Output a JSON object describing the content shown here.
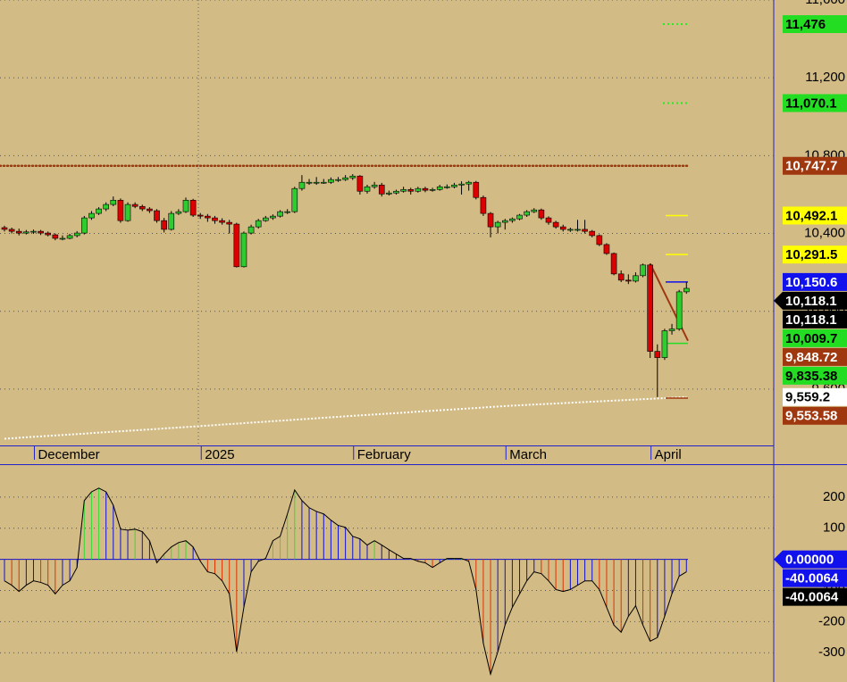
{
  "chart_data": {
    "type": "candlestick",
    "categories": [
      null,
      null,
      null,
      null,
      "December",
      null,
      null,
      null,
      null,
      null,
      null,
      null,
      null,
      null,
      null,
      null,
      null,
      null,
      null,
      null,
      null,
      null,
      null,
      null,
      null,
      null,
      null,
      "2025",
      null,
      null,
      null,
      null,
      null,
      null,
      null,
      null,
      null,
      null,
      null,
      null,
      null,
      null,
      null,
      null,
      null,
      null,
      null,
      null,
      "February",
      null,
      null,
      null,
      null,
      null,
      null,
      null,
      null,
      null,
      null,
      null,
      null,
      null,
      null,
      null,
      null,
      null,
      null,
      null,
      null,
      "March",
      null,
      null,
      null,
      null,
      null,
      null,
      null,
      null,
      null,
      null,
      null,
      null,
      null,
      null,
      null,
      null,
      null,
      null,
      null,
      "April",
      null,
      null,
      null,
      null,
      null
    ],
    "ohlc": [
      [
        10430,
        10440,
        10410,
        10421
      ],
      [
        10421,
        10430,
        10400,
        10411
      ],
      [
        10411,
        10425,
        10390,
        10402
      ],
      [
        10402,
        10418,
        10395,
        10408
      ],
      [
        10408,
        10420,
        10398,
        10411
      ],
      [
        10411,
        10418,
        10392,
        10402
      ],
      [
        10402,
        10410,
        10385,
        10393
      ],
      [
        10393,
        10400,
        10365,
        10375
      ],
      [
        10375,
        10390,
        10365,
        10375
      ],
      [
        10375,
        10398,
        10370,
        10389
      ],
      [
        10389,
        10412,
        10380,
        10402
      ],
      [
        10402,
        10490,
        10395,
        10480
      ],
      [
        10480,
        10515,
        10470,
        10503
      ],
      [
        10503,
        10535,
        10495,
        10526
      ],
      [
        10526,
        10560,
        10515,
        10549
      ],
      [
        10549,
        10590,
        10540,
        10571
      ],
      [
        10571,
        10580,
        10455,
        10466
      ],
      [
        10466,
        10560,
        10460,
        10549
      ],
      [
        10549,
        10560,
        10530,
        10539
      ],
      [
        10539,
        10548,
        10515,
        10526
      ],
      [
        10526,
        10535,
        10505,
        10517
      ],
      [
        10517,
        10525,
        10455,
        10466
      ],
      [
        10466,
        10480,
        10405,
        10421
      ],
      [
        10421,
        10515,
        10415,
        10503
      ],
      [
        10503,
        10525,
        10495,
        10512
      ],
      [
        10512,
        10585,
        10505,
        10571
      ],
      [
        10571,
        10578,
        10485,
        10494
      ],
      [
        10494,
        10505,
        10475,
        10489
      ],
      [
        10489,
        10500,
        10460,
        10480
      ],
      [
        10480,
        10490,
        10450,
        10466
      ],
      [
        10466,
        10478,
        10445,
        10457
      ],
      [
        10457,
        10470,
        10400,
        10448
      ],
      [
        10448,
        10455,
        10225,
        10229
      ],
      [
        10229,
        10410,
        10225,
        10402
      ],
      [
        10402,
        10445,
        10395,
        10434
      ],
      [
        10434,
        10475,
        10425,
        10466
      ],
      [
        10466,
        10490,
        10460,
        10480
      ],
      [
        10480,
        10498,
        10470,
        10489
      ],
      [
        10489,
        10520,
        10482,
        10512
      ],
      [
        10512,
        10525,
        10500,
        10512
      ],
      [
        10512,
        10640,
        10505,
        10631
      ],
      [
        10631,
        10700,
        10620,
        10663
      ],
      [
        10663,
        10680,
        10650,
        10663
      ],
      [
        10663,
        10690,
        10650,
        10663
      ],
      [
        10663,
        10680,
        10655,
        10663
      ],
      [
        10663,
        10688,
        10655,
        10677
      ],
      [
        10677,
        10690,
        10665,
        10677
      ],
      [
        10677,
        10700,
        10670,
        10686
      ],
      [
        10686,
        10705,
        10675,
        10695
      ],
      [
        10695,
        10700,
        10600,
        10617
      ],
      [
        10617,
        10650,
        10605,
        10640
      ],
      [
        10640,
        10665,
        10630,
        10649
      ],
      [
        10649,
        10660,
        10590,
        10603
      ],
      [
        10603,
        10620,
        10595,
        10608
      ],
      [
        10608,
        10625,
        10600,
        10617
      ],
      [
        10617,
        10640,
        10610,
        10626
      ],
      [
        10626,
        10635,
        10600,
        10617
      ],
      [
        10617,
        10640,
        10610,
        10631
      ],
      [
        10631,
        10640,
        10612,
        10622
      ],
      [
        10622,
        10635,
        10615,
        10626
      ],
      [
        10626,
        10650,
        10620,
        10640
      ],
      [
        10640,
        10652,
        10630,
        10640
      ],
      [
        10640,
        10660,
        10632,
        10649
      ],
      [
        10649,
        10668,
        10600,
        10654
      ],
      [
        10654,
        10670,
        10620,
        10663
      ],
      [
        10663,
        10670,
        10575,
        10585
      ],
      [
        10585,
        10595,
        10490,
        10503
      ],
      [
        10503,
        10510,
        10380,
        10434
      ],
      [
        10434,
        10465,
        10400,
        10457
      ],
      [
        10457,
        10475,
        10420,
        10466
      ],
      [
        10466,
        10482,
        10455,
        10475
      ],
      [
        10475,
        10500,
        10468,
        10494
      ],
      [
        10494,
        10520,
        10485,
        10512
      ],
      [
        10512,
        10530,
        10505,
        10521
      ],
      [
        10521,
        10528,
        10470,
        10480
      ],
      [
        10480,
        10488,
        10445,
        10457
      ],
      [
        10457,
        10465,
        10425,
        10434
      ],
      [
        10434,
        10445,
        10410,
        10421
      ],
      [
        10421,
        10430,
        10408,
        10421
      ],
      [
        10421,
        10470,
        10410,
        10421
      ],
      [
        10421,
        10470,
        10400,
        10411
      ],
      [
        10411,
        10418,
        10380,
        10389
      ],
      [
        10389,
        10395,
        10335,
        10343
      ],
      [
        10343,
        10350,
        10290,
        10297
      ],
      [
        10297,
        10302,
        10185,
        10192
      ],
      [
        10192,
        10210,
        10150,
        10160
      ],
      [
        10160,
        10190,
        10140,
        10155
      ],
      [
        10155,
        10200,
        10148,
        10183
      ],
      [
        10183,
        10245,
        10175,
        10238
      ],
      [
        10238,
        10245,
        9760,
        9794
      ],
      [
        9794,
        9830,
        9559,
        9762
      ],
      [
        9762,
        9910,
        9750,
        9900
      ],
      [
        9900,
        9935,
        9880,
        9909
      ],
      [
        9909,
        10110,
        9900,
        10100
      ],
      [
        10100,
        10150,
        10090,
        10118
      ]
    ],
    "up_color": "#2ecc2e",
    "down_color": "#dd0000",
    "ylim": [
      9315,
      11600
    ],
    "yticks": [
      {
        "value": 9600,
        "label": "9,600"
      },
      {
        "value": 10000,
        "label": "10,000"
      },
      {
        "value": 10400,
        "label": "10,400"
      },
      {
        "value": 10800,
        "label": "10,800"
      },
      {
        "value": 11200,
        "label": "11,200"
      },
      {
        "value": 11600,
        "label": "11,600"
      }
    ],
    "grid": true,
    "moving_average": {
      "color": "#ffffff",
      "index": [
        0,
        23,
        47,
        70,
        94
      ],
      "values": [
        9345,
        9400,
        9460,
        9515,
        9559.2
      ]
    },
    "levels": [
      {
        "value": 11476,
        "label": "11,476",
        "color": "#22dd22",
        "text_color": "#000000",
        "line": "short-dotted"
      },
      {
        "value": 11070.1,
        "label": "11,070.1",
        "color": "#22dd22",
        "text_color": "#000000",
        "line": "short-dotted"
      },
      {
        "value": 10747.7,
        "label": "10,747.7",
        "color": "#a0380f",
        "text_color": "#ffffff",
        "line": "full-dotted"
      },
      {
        "value": 10492.1,
        "label": "10,492.1",
        "color": "#ffff00",
        "text_color": "#000000",
        "line": "short"
      },
      {
        "value": 10291.5,
        "label": "10,291.5",
        "color": "#ffff00",
        "text_color": "#000000",
        "line": "short"
      },
      {
        "value": 10150.6,
        "label": "10,150.6",
        "color": "#1111ee",
        "text_color": "#ffffff",
        "line": "short"
      },
      {
        "value": 10118.1,
        "label": "10,118.1",
        "color": "#000000",
        "text_color": "#ffffff",
        "line": "none",
        "arrow": true
      },
      {
        "value": 10118.1,
        "label": "10,118.1",
        "color": "#000000",
        "text_color": "#ffffff",
        "line": "none"
      },
      {
        "value": 10009.7,
        "label": "10,009.7",
        "color": "#22dd22",
        "text_color": "#000000",
        "line": "none"
      },
      {
        "value": 9848.72,
        "label": "9,848.72",
        "color": "#a0380f",
        "text_color": "#ffffff",
        "line": "trend"
      },
      {
        "value": 9835.38,
        "label": "9,835.38",
        "color": "#22dd22",
        "text_color": "#000000",
        "line": "short"
      },
      {
        "value": 9559.2,
        "label": "9,559.2",
        "color": "#ffffff",
        "text_color": "#000000",
        "line": "none"
      },
      {
        "value": 9553.58,
        "label": "9,553.58",
        "color": "#a0380f",
        "text_color": "#ffffff",
        "line": "short"
      }
    ],
    "oscillator": {
      "values": [
        -69,
        -83,
        -103,
        -83,
        -69,
        -74,
        -83,
        -111,
        -83,
        -69,
        -26,
        189,
        217,
        229,
        217,
        174,
        97,
        94,
        97,
        89,
        60,
        -11,
        17,
        40,
        54,
        60,
        40,
        -6,
        -40,
        -46,
        -69,
        -111,
        -297,
        -154,
        -40,
        -6,
        3,
        60,
        74,
        146,
        223,
        189,
        166,
        154,
        146,
        126,
        109,
        103,
        74,
        66,
        46,
        60,
        46,
        31,
        17,
        3,
        3,
        -6,
        -11,
        -26,
        -11,
        3,
        3,
        3,
        -6,
        -97,
        -269,
        -369,
        -297,
        -211,
        -154,
        -111,
        -69,
        -40,
        -46,
        -69,
        -97,
        -103,
        -97,
        -83,
        -69,
        -69,
        -97,
        -154,
        -211,
        -234,
        -183,
        -149,
        -211,
        -263,
        -251,
        -183,
        -111,
        -54,
        -40.0064
      ],
      "ylim": [
        -394,
        303
      ],
      "yticks": [
        -300,
        -200,
        -100,
        0,
        100,
        200
      ],
      "colors": {
        "rise_above": "#33dd33",
        "fall_above": "#1111cc",
        "rise_below": "#1111cc",
        "fall_below": "#dd3300"
      },
      "tags": [
        {
          "value": 0,
          "label": "0.00000",
          "color": "#1111ee",
          "text_color": "#ffffff",
          "arrow": true
        },
        {
          "value": -40.0064,
          "label": "-40.0064",
          "color": "#1111ee",
          "text_color": "#ffffff"
        },
        {
          "value": -40.0064,
          "label": "-40.0064",
          "color": "#000000",
          "text_color": "#ffffff"
        }
      ]
    }
  }
}
